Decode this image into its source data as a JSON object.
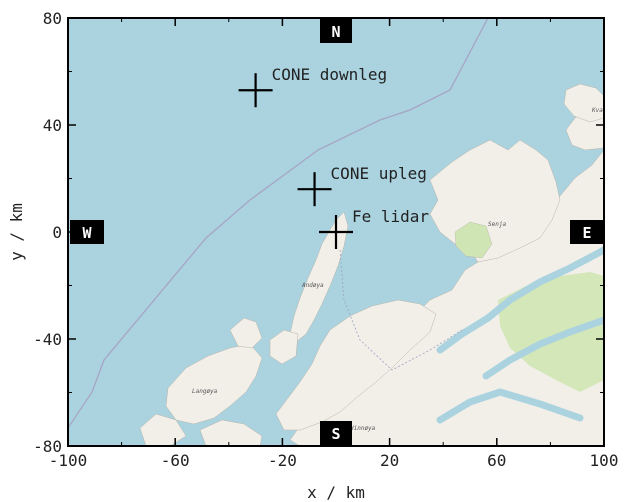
{
  "chart_data": {
    "type": "scatter",
    "xlabel": "x / km",
    "ylabel": "y / km",
    "xlim": [
      -100,
      100
    ],
    "ylim": [
      -80,
      80
    ],
    "xticks": [
      "-100",
      "-60",
      "-20",
      "20",
      "60",
      "100"
    ],
    "yticks": [
      "80",
      "40",
      "0",
      "-40",
      "-80"
    ],
    "compass": {
      "north": "N",
      "south": "S",
      "east": "E",
      "west": "W"
    },
    "points": [
      {
        "label": "CONE downleg",
        "x": -30,
        "y": 53
      },
      {
        "label": "CONE upleg",
        "x": -8,
        "y": 16
      },
      {
        "label": "Fe lidar",
        "x": 0,
        "y": 0
      }
    ],
    "map_labels": [
      "Senja",
      "Andøya",
      "Langøya",
      "Hinnøya",
      "Kvaløya"
    ],
    "colors": {
      "sea": "#aad3df",
      "land": "#f2efe9",
      "green": "#cfe6b4",
      "border": "#a7a4c6",
      "frame": "#000000"
    }
  }
}
